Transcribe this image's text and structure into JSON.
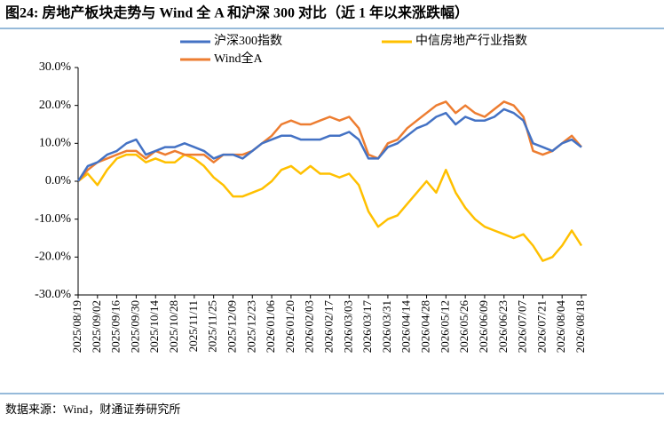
{
  "header": {
    "title": "图24: 房地产板块走势与 Wind 全 A 和沪深 300 对比（近 1 年以来涨跌幅）"
  },
  "footer": {
    "source": "数据来源：Wind，财通证券研究所"
  },
  "chart_data": {
    "type": "line",
    "categories": [
      "2025/08/19",
      null,
      "2025/09/02",
      null,
      "2025/09/16",
      null,
      "2025/09/30",
      null,
      "2025/10/14",
      null,
      "2025/10/28",
      null,
      "2025/11/11",
      null,
      "2025/11/25",
      null,
      "2025/12/09",
      null,
      "2025/12/23",
      null,
      "2026/01/06",
      null,
      "2026/01/20",
      null,
      "2026/02/03",
      null,
      "2026/02/17",
      null,
      "2026/03/03",
      null,
      "2026/03/17",
      null,
      "2026/03/31",
      null,
      "2026/04/14",
      null,
      "2026/04/28",
      null,
      "2026/05/12",
      null,
      "2026/05/26",
      null,
      "2026/06/09",
      null,
      "2026/06/23",
      null,
      "2026/07/07",
      null,
      "2026/07/21",
      null,
      "2026/08/04",
      null,
      "2026/08/18"
    ],
    "series": [
      {
        "name": "沪深300指数",
        "color": "#4472c4",
        "values": [
          0,
          4,
          5,
          7,
          8,
          10,
          11,
          7,
          8,
          9,
          9,
          10,
          9,
          8,
          6,
          7,
          7,
          6,
          8,
          10,
          11,
          12,
          12,
          11,
          11,
          11,
          12,
          12,
          13,
          11,
          6,
          6,
          9,
          10,
          12,
          14,
          15,
          17,
          18,
          15,
          17,
          16,
          16,
          17,
          19,
          18,
          16,
          10,
          9,
          8,
          10,
          11,
          9
        ]
      },
      {
        "name": "中信房地产行业指数",
        "color": "#ffc000",
        "values": [
          0,
          2,
          -1,
          3,
          6,
          7,
          7,
          5,
          6,
          5,
          5,
          7,
          6,
          4,
          1,
          -1,
          -4,
          -4,
          -3,
          -2,
          0,
          3,
          4,
          2,
          4,
          2,
          2,
          1,
          2,
          -1,
          -8,
          -12,
          -10,
          -9,
          -6,
          -3,
          0,
          -3,
          3,
          -3,
          -7,
          -10,
          -12,
          -13,
          -14,
          -15,
          -14,
          -17,
          -21,
          -20,
          -17,
          -13,
          -17
        ]
      },
      {
        "name": "Wind全A",
        "color": "#ed7d31",
        "values": [
          0,
          3,
          5,
          6,
          7,
          8,
          8,
          6,
          8,
          7,
          8,
          7,
          7,
          7,
          5,
          7,
          7,
          7,
          8,
          10,
          12,
          15,
          16,
          15,
          15,
          16,
          17,
          16,
          17,
          14,
          7,
          6,
          10,
          11,
          14,
          16,
          18,
          20,
          21,
          18,
          20,
          18,
          17,
          19,
          21,
          20,
          17,
          8,
          7,
          8,
          10,
          12,
          9
        ]
      }
    ],
    "ylim": [
      -30,
      30
    ],
    "yticks": [
      {
        "value": -30,
        "label": "-30.0%"
      },
      {
        "value": -20,
        "label": "-20.0%"
      },
      {
        "value": -10,
        "label": "-10.0%"
      },
      {
        "value": 0,
        "label": "0.0%"
      },
      {
        "value": 10,
        "label": "10.0%"
      },
      {
        "value": 20,
        "label": "20.0%"
      },
      {
        "value": 30,
        "label": "30.0%"
      }
    ],
    "grid": false
  }
}
